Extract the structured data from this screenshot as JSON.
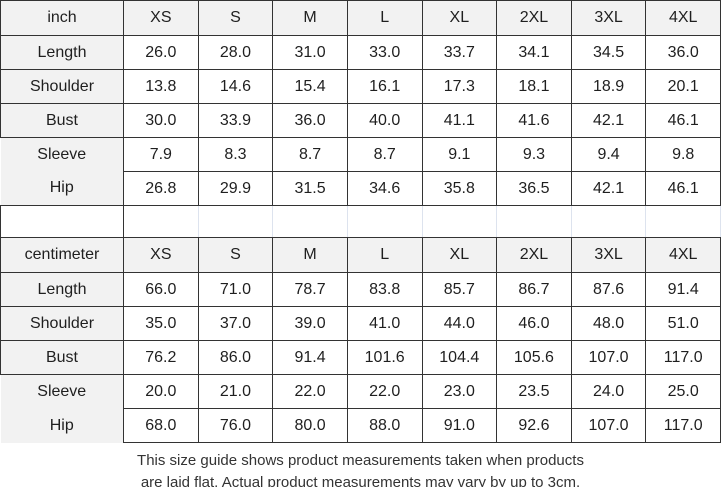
{
  "colors": {
    "border_dark": "#333333",
    "border_light": "#dde3ee",
    "header_bg": "#f2f2f2",
    "text": "#1f1f1f"
  },
  "chart_data": [
    {
      "type": "table",
      "title": "Product measurements in inches",
      "unit": "inch",
      "columns": [
        "XS",
        "S",
        "M",
        "L",
        "XL",
        "2XL",
        "3XL",
        "4XL"
      ],
      "rows": [
        {
          "label": "Length",
          "values": [
            "26.0",
            "28.0",
            "31.0",
            "33.0",
            "33.7",
            "34.1",
            "34.5",
            "36.0"
          ]
        },
        {
          "label": "Shoulder",
          "values": [
            "13.8",
            "14.6",
            "15.4",
            "16.1",
            "17.3",
            "18.1",
            "18.9",
            "20.1"
          ]
        },
        {
          "label": "Bust",
          "values": [
            "30.0",
            "33.9",
            "36.0",
            "40.0",
            "41.1",
            "41.6",
            "42.1",
            "46.1"
          ]
        },
        {
          "label": "Sleeve",
          "values": [
            "7.9",
            "8.3",
            "8.7",
            "8.7",
            "9.1",
            "9.3",
            "9.4",
            "9.8"
          ]
        },
        {
          "label": "Hip",
          "values": [
            "26.8",
            "29.9",
            "31.5",
            "34.6",
            "35.8",
            "36.5",
            "42.1",
            "46.1"
          ]
        }
      ]
    },
    {
      "type": "table",
      "title": "Product measurements in centimeters",
      "unit": "centimeter",
      "columns": [
        "XS",
        "S",
        "M",
        "L",
        "XL",
        "2XL",
        "3XL",
        "4XL"
      ],
      "rows": [
        {
          "label": "Length",
          "values": [
            "66.0",
            "71.0",
            "78.7",
            "83.8",
            "85.7",
            "86.7",
            "87.6",
            "91.4"
          ]
        },
        {
          "label": "Shoulder",
          "values": [
            "35.0",
            "37.0",
            "39.0",
            "41.0",
            "44.0",
            "46.0",
            "48.0",
            "51.0"
          ]
        },
        {
          "label": "Bust",
          "values": [
            "76.2",
            "86.0",
            "91.4",
            "101.6",
            "104.4",
            "105.6",
            "107.0",
            "117.0"
          ]
        },
        {
          "label": "Sleeve",
          "values": [
            "20.0",
            "21.0",
            "22.0",
            "22.0",
            "23.0",
            "23.5",
            "24.0",
            "25.0"
          ]
        },
        {
          "label": "Hip",
          "values": [
            "68.0",
            "76.0",
            "80.0",
            "88.0",
            "91.0",
            "92.6",
            "107.0",
            "117.0"
          ]
        }
      ]
    }
  ],
  "footer": {
    "line1": "This size guide shows product measurements taken when products",
    "line2": "are laid flat. Actual product measurements may vary by up to 3cm."
  }
}
